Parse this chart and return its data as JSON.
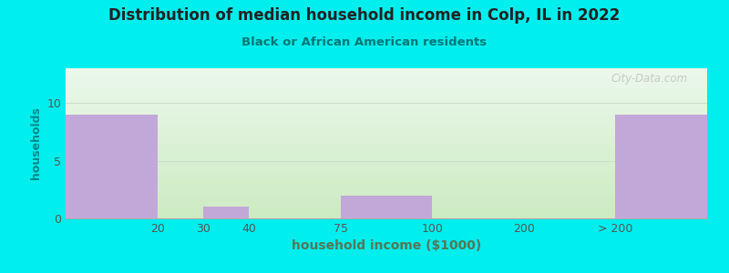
{
  "title": "Distribution of median household income in Colp, IL in 2022",
  "subtitle": "Black or African American residents",
  "xlabel": "household income ($1000)",
  "ylabel": "households",
  "bar_color": "#c2a8d8",
  "background_outer": "#00EEEE",
  "background_top": "#eaf5ea",
  "background_bottom": "#c8e8c0",
  "yticks": [
    0,
    5,
    10
  ],
  "ylim": [
    0,
    13
  ],
  "xlim": [
    0,
    7
  ],
  "bars": [
    {
      "x_left": 0,
      "x_right": 1,
      "height": 9,
      "label": "20"
    },
    {
      "x_left": 1.5,
      "x_right": 2,
      "height": 1,
      "label": "30"
    },
    {
      "x_left": 3,
      "x_right": 4,
      "height": 2,
      "label": "100"
    },
    {
      "x_left": 6,
      "x_right": 7,
      "height": 9,
      "label": "> 200"
    }
  ],
  "xtick_positions": [
    1,
    1.5,
    2,
    3,
    4,
    5,
    6
  ],
  "xtick_labels": [
    "20",
    "30",
    "40",
    "75",
    "100",
    "200",
    "> 200"
  ],
  "watermark": "City-Data.com"
}
